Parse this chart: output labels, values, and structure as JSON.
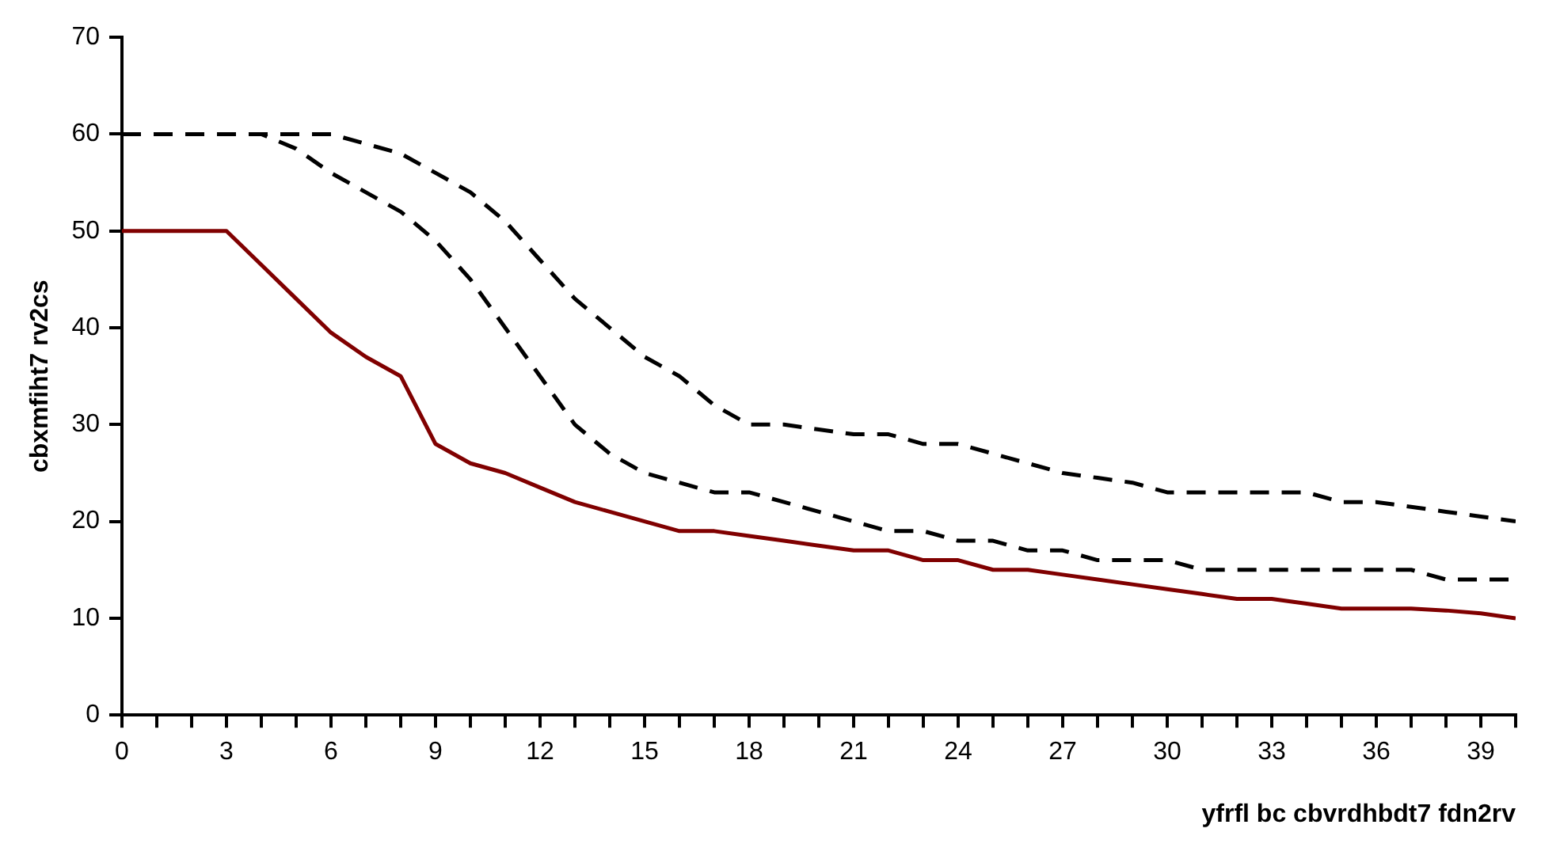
{
  "chart_data": {
    "type": "line",
    "xlabel": "yfrfl bc cbvrdhbdt7 fdn2rv",
    "ylabel": "cbxmfiht7 rv2cs",
    "x": [
      0,
      1,
      2,
      3,
      4,
      5,
      6,
      7,
      8,
      9,
      10,
      11,
      12,
      13,
      14,
      15,
      16,
      17,
      18,
      19,
      20,
      21,
      22,
      23,
      24,
      25,
      26,
      27,
      28,
      29,
      30,
      31,
      32,
      33,
      34,
      35,
      36,
      37,
      38,
      39,
      40
    ],
    "series": [
      {
        "color": "#800000",
        "line_style": "solid",
        "values": [
          50,
          50,
          50,
          50,
          46.5,
          43,
          39.5,
          37,
          35,
          28,
          26,
          25,
          23.5,
          22,
          21,
          20,
          19,
          19,
          18.5,
          18,
          17.5,
          17,
          17,
          16,
          16,
          15,
          15,
          14.5,
          14,
          13.5,
          13,
          12.5,
          12,
          12,
          11.5,
          11,
          11,
          11,
          10.8,
          10.5,
          10
        ]
      },
      {
        "color": "#000000",
        "line_style": "dashed",
        "values": [
          60,
          60,
          60,
          60,
          60,
          60,
          60,
          59,
          58,
          56,
          54,
          51,
          47,
          43,
          40,
          37,
          35,
          32,
          30,
          30,
          29.5,
          29,
          29,
          28,
          28,
          27,
          26,
          25,
          24.5,
          24,
          23,
          23,
          23,
          23,
          23,
          22,
          22,
          21.5,
          21,
          20.5,
          20
        ]
      },
      {
        "color": "#000000",
        "line_style": "dashed",
        "values": [
          60,
          60,
          60,
          60,
          60,
          58.5,
          56,
          54,
          52,
          49,
          45,
          40,
          35,
          30,
          27,
          25,
          24,
          23,
          23,
          22,
          21,
          20,
          19,
          19,
          18,
          18,
          17,
          17,
          16,
          16,
          16,
          15,
          15,
          15,
          15,
          15,
          15,
          15,
          14,
          14,
          14
        ]
      }
    ],
    "xlim": [
      0,
      40
    ],
    "xticks": [
      0,
      {
        "value": 1,
        "label": null
      },
      {
        "value": 2,
        "label": null
      },
      3,
      {
        "value": 4,
        "label": null
      },
      {
        "value": 5,
        "label": null
      },
      6,
      {
        "value": 7,
        "label": null
      },
      {
        "value": 8,
        "label": null
      },
      9,
      {
        "value": 10,
        "label": null
      },
      {
        "value": 11,
        "label": null
      },
      12,
      {
        "value": 13,
        "label": null
      },
      {
        "value": 14,
        "label": null
      },
      15,
      {
        "value": 16,
        "label": null
      },
      {
        "value": 17,
        "label": null
      },
      18,
      {
        "value": 19,
        "label": null
      },
      {
        "value": 20,
        "label": null
      },
      21,
      {
        "value": 22,
        "label": null
      },
      {
        "value": 23,
        "label": null
      },
      24,
      {
        "value": 25,
        "label": null
      },
      {
        "value": 26,
        "label": null
      },
      27,
      {
        "value": 28,
        "label": null
      },
      {
        "value": 29,
        "label": null
      },
      30,
      {
        "value": 31,
        "label": null
      },
      {
        "value": 32,
        "label": null
      },
      33,
      {
        "value": 34,
        "label": null
      },
      {
        "value": 35,
        "label": null
      },
      36,
      {
        "value": 37,
        "label": null
      },
      {
        "value": 38,
        "label": null
      },
      39,
      {
        "value": 40,
        "label": null
      }
    ],
    "ylim": [
      0,
      70
    ],
    "yticks": [
      0,
      10,
      20,
      30,
      40,
      50,
      60,
      70
    ],
    "grid": false,
    "legend": false,
    "marker": "none"
  }
}
